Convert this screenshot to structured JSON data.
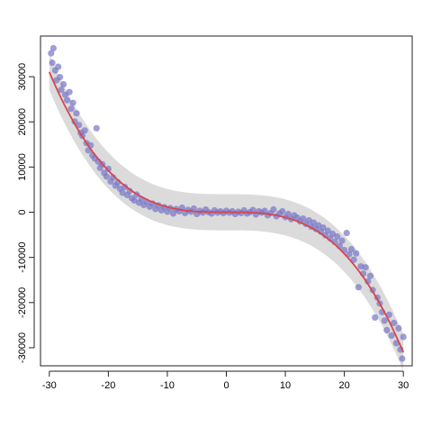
{
  "chart_data": {
    "type": "scatter",
    "title": "",
    "xlabel": "",
    "ylabel": "",
    "xlim": [
      -31.5,
      31.5
    ],
    "ylim": [
      -34000,
      39000
    ],
    "x_ticks": [
      -30,
      -20,
      -10,
      0,
      10,
      20,
      30
    ],
    "y_ticks": [
      -30000,
      -20000,
      -10000,
      0,
      10000,
      20000,
      30000
    ],
    "x_tick_labels": [
      "-30",
      "-20",
      "-10",
      "0",
      "10",
      "20",
      "30"
    ],
    "y_tick_labels": [
      "-30000",
      "-20000",
      "-10000",
      "0",
      "10000",
      "20000",
      "30000"
    ],
    "grid": false,
    "legend": "none",
    "point_color": "#7a78c8",
    "fit_color": "#d9454e",
    "band_color": "#cfcfcf",
    "fit": {
      "model": "cubic",
      "coefficients": [
        0,
        0,
        0,
        -1.15
      ],
      "band_halfwidth": 4000
    },
    "points": [
      {
        "x": -29.7,
        "y": 35200
      },
      {
        "x": -29.3,
        "y": 36300
      },
      {
        "x": -29.5,
        "y": 33100
      },
      {
        "x": -29.0,
        "y": 31400
      },
      {
        "x": -28.8,
        "y": 29200
      },
      {
        "x": -28.5,
        "y": 32200
      },
      {
        "x": -28.2,
        "y": 29900
      },
      {
        "x": -28.0,
        "y": 27100
      },
      {
        "x": -27.6,
        "y": 28300
      },
      {
        "x": -27.3,
        "y": 26000
      },
      {
        "x": -27.0,
        "y": 24800
      },
      {
        "x": -26.6,
        "y": 26600
      },
      {
        "x": -26.3,
        "y": 22900
      },
      {
        "x": -26.0,
        "y": 24200
      },
      {
        "x": -25.7,
        "y": 20100
      },
      {
        "x": -25.4,
        "y": 21900
      },
      {
        "x": -25.0,
        "y": 19300
      },
      {
        "x": -24.7,
        "y": 17600
      },
      {
        "x": -24.4,
        "y": 16900
      },
      {
        "x": -24.0,
        "y": 18100
      },
      {
        "x": -23.7,
        "y": 15300
      },
      {
        "x": -23.4,
        "y": 13700
      },
      {
        "x": -23.0,
        "y": 14800
      },
      {
        "x": -22.7,
        "y": 12600
      },
      {
        "x": -22.3,
        "y": 11900
      },
      {
        "x": -22.0,
        "y": 18600
      },
      {
        "x": -21.7,
        "y": 11200
      },
      {
        "x": -21.4,
        "y": 9800
      },
      {
        "x": -21.0,
        "y": 10600
      },
      {
        "x": -20.7,
        "y": 8700
      },
      {
        "x": -20.3,
        "y": 7900
      },
      {
        "x": -20.0,
        "y": 9600
      },
      {
        "x": -19.6,
        "y": 6800
      },
      {
        "x": -19.2,
        "y": 7700
      },
      {
        "x": -18.8,
        "y": 5900
      },
      {
        "x": -18.4,
        "y": 6600
      },
      {
        "x": -18.0,
        "y": 5200
      },
      {
        "x": -17.6,
        "y": 4300
      },
      {
        "x": -17.2,
        "y": 5600
      },
      {
        "x": -16.8,
        "y": 3800
      },
      {
        "x": -16.4,
        "y": 4700
      },
      {
        "x": -16.0,
        "y": 3100
      },
      {
        "x": -15.6,
        "y": 2600
      },
      {
        "x": -15.2,
        "y": 3900
      },
      {
        "x": -14.8,
        "y": 2100
      },
      {
        "x": -14.4,
        "y": 2900
      },
      {
        "x": -14.0,
        "y": 1600
      },
      {
        "x": -13.5,
        "y": 2300
      },
      {
        "x": -13.0,
        "y": 1200
      },
      {
        "x": -12.5,
        "y": 1900
      },
      {
        "x": -12.0,
        "y": 700
      },
      {
        "x": -11.5,
        "y": 1500
      },
      {
        "x": -11.0,
        "y": 400
      },
      {
        "x": -10.5,
        "y": 1100
      },
      {
        "x": -10.0,
        "y": 100
      },
      {
        "x": -9.5,
        "y": 900
      },
      {
        "x": -9.0,
        "y": -300
      },
      {
        "x": -8.5,
        "y": 700
      },
      {
        "x": -8.0,
        "y": 200
      },
      {
        "x": -7.5,
        "y": 1000
      },
      {
        "x": -7.0,
        "y": -200
      },
      {
        "x": -6.5,
        "y": 500
      },
      {
        "x": -6.0,
        "y": 100
      },
      {
        "x": -5.5,
        "y": 800
      },
      {
        "x": -5.0,
        "y": -400
      },
      {
        "x": -4.5,
        "y": 300
      },
      {
        "x": -4.0,
        "y": -100
      },
      {
        "x": -3.5,
        "y": 600
      },
      {
        "x": -3.0,
        "y": 0
      },
      {
        "x": -2.5,
        "y": -300
      },
      {
        "x": -2.0,
        "y": 400
      },
      {
        "x": -1.5,
        "y": -100
      },
      {
        "x": -1.0,
        "y": 200
      },
      {
        "x": -0.5,
        "y": -200
      },
      {
        "x": 0.0,
        "y": 300
      },
      {
        "x": 0.5,
        "y": -100
      },
      {
        "x": 1.0,
        "y": 200
      },
      {
        "x": 1.5,
        "y": -400
      },
      {
        "x": 2.0,
        "y": 100
      },
      {
        "x": 2.5,
        "y": -200
      },
      {
        "x": 3.0,
        "y": 400
      },
      {
        "x": 3.5,
        "y": -300
      },
      {
        "x": 4.0,
        "y": 0
      },
      {
        "x": 4.5,
        "y": 500
      },
      {
        "x": 5.0,
        "y": -500
      },
      {
        "x": 5.5,
        "y": 200
      },
      {
        "x": 6.0,
        "y": -100
      },
      {
        "x": 6.5,
        "y": 300
      },
      {
        "x": 7.0,
        "y": -700
      },
      {
        "x": 7.5,
        "y": -200
      },
      {
        "x": 8.0,
        "y": 600
      },
      {
        "x": 8.5,
        "y": -900
      },
      {
        "x": 9.0,
        "y": -300
      },
      {
        "x": 9.5,
        "y": 200
      },
      {
        "x": 10.0,
        "y": -1100
      },
      {
        "x": 10.5,
        "y": -400
      },
      {
        "x": 11.0,
        "y": -1500
      },
      {
        "x": 11.5,
        "y": -700
      },
      {
        "x": 12.0,
        "y": -1200
      },
      {
        "x": 12.5,
        "y": -2000
      },
      {
        "x": 13.0,
        "y": -1400
      },
      {
        "x": 13.5,
        "y": -2600
      },
      {
        "x": 14.0,
        "y": -1800
      },
      {
        "x": 14.4,
        "y": -3200
      },
      {
        "x": 14.8,
        "y": -2300
      },
      {
        "x": 15.2,
        "y": -3700
      },
      {
        "x": 15.6,
        "y": -2900
      },
      {
        "x": 16.0,
        "y": -4300
      },
      {
        "x": 16.4,
        "y": -3400
      },
      {
        "x": 16.8,
        "y": -5100
      },
      {
        "x": 17.2,
        "y": -4100
      },
      {
        "x": 17.6,
        "y": -5800
      },
      {
        "x": 18.0,
        "y": -4800
      },
      {
        "x": 18.4,
        "y": -6600
      },
      {
        "x": 18.8,
        "y": -5400
      },
      {
        "x": 19.2,
        "y": -7500
      },
      {
        "x": 19.6,
        "y": -6300
      },
      {
        "x": 20.0,
        "y": -8400
      },
      {
        "x": 20.4,
        "y": -4600
      },
      {
        "x": 20.8,
        "y": -9300
      },
      {
        "x": 21.2,
        "y": -8200
      },
      {
        "x": 21.6,
        "y": -10500
      },
      {
        "x": 22.0,
        "y": -9100
      },
      {
        "x": 22.4,
        "y": -16600
      },
      {
        "x": 22.8,
        "y": -12000
      },
      {
        "x": 23.2,
        "y": -13600
      },
      {
        "x": 23.6,
        "y": -12200
      },
      {
        "x": 24.0,
        "y": -15300
      },
      {
        "x": 24.4,
        "y": -14100
      },
      {
        "x": 24.8,
        "y": -17200
      },
      {
        "x": 25.2,
        "y": -23300
      },
      {
        "x": 25.6,
        "y": -18900
      },
      {
        "x": 26.0,
        "y": -20200
      },
      {
        "x": 26.4,
        "y": -22100
      },
      {
        "x": 26.8,
        "y": -24000
      },
      {
        "x": 27.2,
        "y": -26100
      },
      {
        "x": 27.6,
        "y": -22700
      },
      {
        "x": 28.0,
        "y": -27300
      },
      {
        "x": 28.4,
        "y": -24500
      },
      {
        "x": 28.8,
        "y": -29000
      },
      {
        "x": 29.2,
        "y": -25700
      },
      {
        "x": 29.5,
        "y": -30400
      },
      {
        "x": 29.8,
        "y": -32400
      },
      {
        "x": 30.0,
        "y": -27600
      }
    ]
  }
}
